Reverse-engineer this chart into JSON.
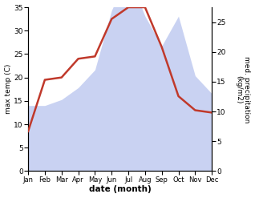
{
  "months": [
    "Jan",
    "Feb",
    "Mar",
    "Apr",
    "May",
    "Jun",
    "Jul",
    "Aug",
    "Sep",
    "Oct",
    "Nov",
    "Dec"
  ],
  "temp": [
    8.5,
    19.5,
    20.0,
    24.0,
    24.5,
    32.5,
    35.0,
    35.0,
    26.5,
    16.0,
    13.0,
    12.5
  ],
  "precip": [
    11,
    11,
    12,
    14,
    17,
    27,
    33,
    26,
    21,
    26,
    16,
    13
  ],
  "temp_color": "#c0392b",
  "precip_fill_color": "#b8c4ee",
  "precip_alpha": 0.75,
  "xlabel": "date (month)",
  "ylabel_left": "max temp (C)",
  "ylabel_right": "med. precipitation\n(kg/m2)",
  "ylim_left": [
    0,
    35
  ],
  "ylim_right": [
    0,
    27.5
  ],
  "yticks_left": [
    0,
    5,
    10,
    15,
    20,
    25,
    30,
    35
  ],
  "yticks_right": [
    0,
    5,
    10,
    15,
    20,
    25
  ],
  "figsize": [
    3.18,
    2.47
  ],
  "dpi": 100
}
